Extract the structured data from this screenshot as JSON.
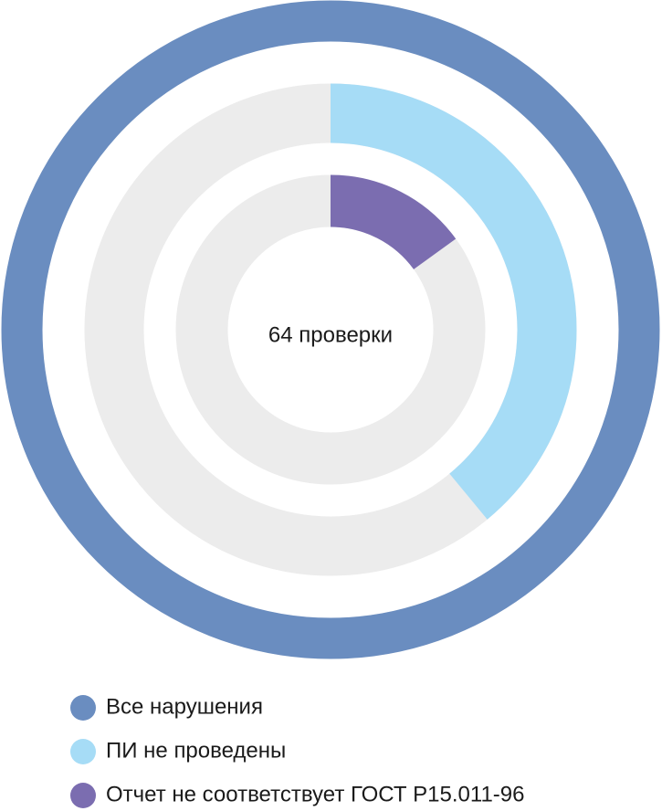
{
  "chart_data": {
    "type": "radial",
    "center_label": "64 проверки",
    "ylim": [
      0,
      100
    ],
    "track_color": "#ececec",
    "series": [
      {
        "name": "Все нарушения",
        "color": "#6a8dc0",
        "values": [
          100
        ]
      },
      {
        "name": "ПИ не проведены",
        "color": "#a6dcf6",
        "values": [
          39
        ]
      },
      {
        "name": "Отчет не соответствует ГОСТ Р15.011-96",
        "color": "#7b6db0",
        "values": [
          15
        ]
      }
    ]
  }
}
